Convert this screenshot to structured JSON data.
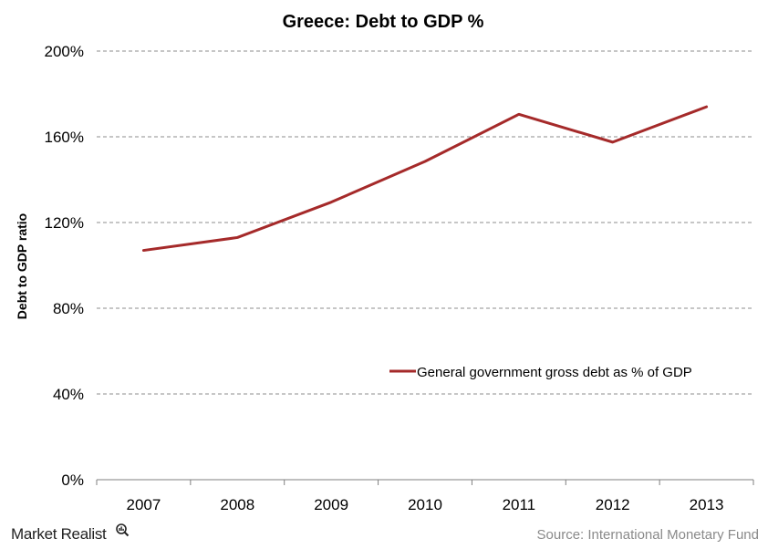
{
  "chart_data": {
    "type": "line",
    "title": "Greece: Debt to GDP %",
    "xlabel": "",
    "ylabel": "Debt to GDP ratio",
    "categories": [
      "2007",
      "2008",
      "2009",
      "2010",
      "2011",
      "2012",
      "2013"
    ],
    "y_ticks": [
      "0%",
      "40%",
      "80%",
      "120%",
      "160%",
      "200%"
    ],
    "y_tick_values": [
      0,
      40,
      80,
      120,
      160,
      200
    ],
    "ylim": [
      0,
      200
    ],
    "grid": "horizontal dashed",
    "legend_position": "right",
    "series": [
      {
        "name": "General government gross debt as % of GDP",
        "values": [
          107,
          113,
          129.5,
          148.5,
          170.5,
          157.5,
          174
        ],
        "color": "#a52a2a"
      }
    ]
  },
  "footer": {
    "source": "Source: International Monetary Fund",
    "brand": "Market Realist"
  },
  "colors": {
    "line": "#a52a2a",
    "grid": "#8c8c8c",
    "axis": "#7f7f7f"
  }
}
